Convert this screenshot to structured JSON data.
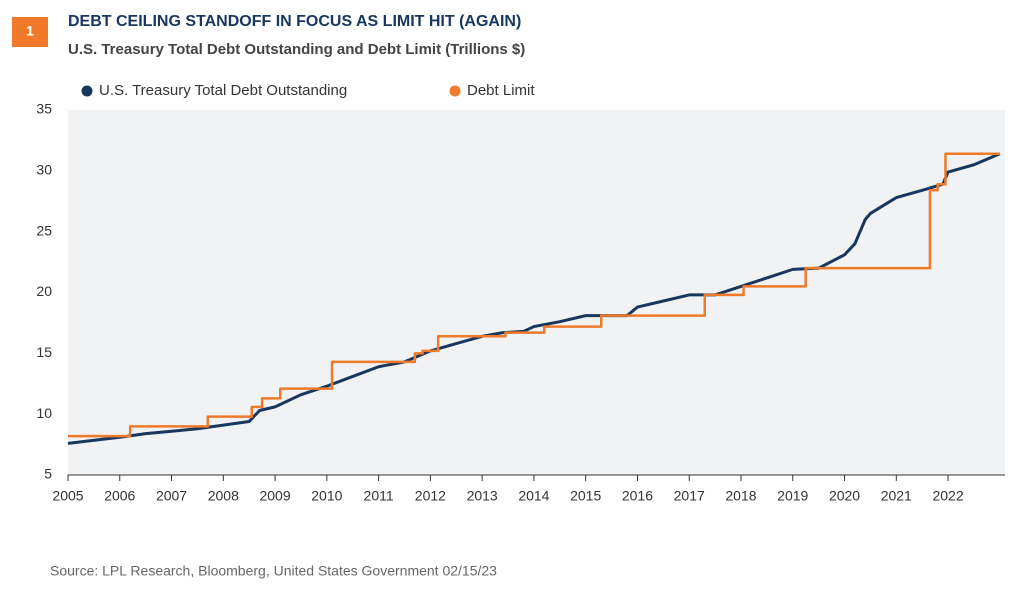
{
  "badge": "1",
  "source": "Source: LPL Research,  Bloomberg, United States Government  02/15/23",
  "chart_data": {
    "type": "line",
    "title": "DEBT CEILING STANDOFF IN FOCUS AS LIMIT HIT (AGAIN)",
    "subtitle": "U.S. Treasury Total Debt Outstanding and Debt Limit (Trillions $)",
    "xlim": [
      2005,
      2023.1
    ],
    "xticks": [
      2005,
      2006,
      2007,
      2008,
      2009,
      2010,
      2011,
      2012,
      2013,
      2014,
      2015,
      2016,
      2017,
      2018,
      2019,
      2020,
      2021,
      2022
    ],
    "ylim": [
      5,
      35
    ],
    "yticks": [
      5,
      10,
      15,
      20,
      25,
      30,
      35
    ],
    "legend": "top-left",
    "series": [
      {
        "name": "U.S. Treasury Total Debt Outstanding",
        "color": "#17375e",
        "x": [
          2005,
          2006,
          2006.5,
          2007,
          2007.5,
          2008,
          2008.5,
          2008.7,
          2009,
          2009.5,
          2010,
          2010.5,
          2011,
          2011.5,
          2012,
          2012.5,
          2013,
          2013.4,
          2013.8,
          2014,
          2014.5,
          2015,
          2015.8,
          2016,
          2016.5,
          2017,
          2017.5,
          2018,
          2018.5,
          2019,
          2019.5,
          2020,
          2020.2,
          2020.4,
          2020.5,
          2021,
          2021.5,
          2021.9,
          2022,
          2022.5,
          2023
        ],
        "values": [
          7.6,
          8.1,
          8.4,
          8.6,
          8.8,
          9.1,
          9.4,
          10.3,
          10.6,
          11.6,
          12.3,
          13.1,
          13.9,
          14.3,
          15.2,
          15.8,
          16.4,
          16.7,
          16.8,
          17.2,
          17.6,
          18.1,
          18.1,
          18.8,
          19.3,
          19.8,
          19.8,
          20.5,
          21.2,
          21.9,
          22.0,
          23.1,
          24.0,
          26.0,
          26.5,
          27.8,
          28.4,
          28.9,
          29.9,
          30.5,
          31.4
        ]
      },
      {
        "name": "Debt Limit",
        "color": "#f07a2a",
        "x": [
          2005,
          2006.2,
          2006.2,
          2007.7,
          2007.7,
          2008.55,
          2008.55,
          2008.75,
          2008.75,
          2009.1,
          2009.1,
          2010.1,
          2010.1,
          2011.7,
          2011.7,
          2011.85,
          2011.85,
          2012.15,
          2012.15,
          2013.45,
          2013.45,
          2014.2,
          2014.2,
          2015.3,
          2015.3,
          2017.3,
          2017.3,
          2018.05,
          2018.05,
          2019.25,
          2019.25,
          2021.65,
          2021.65,
          2021.8,
          2021.8,
          2021.95,
          2021.95,
          2023
        ],
        "values": [
          8.2,
          8.2,
          9.0,
          9.0,
          9.8,
          9.8,
          10.6,
          10.6,
          11.3,
          11.3,
          12.1,
          12.1,
          14.3,
          14.3,
          15.0,
          15.0,
          15.2,
          15.2,
          16.4,
          16.4,
          16.7,
          16.7,
          17.2,
          17.2,
          18.1,
          18.1,
          19.8,
          19.8,
          20.5,
          20.5,
          22.0,
          22.0,
          28.4,
          28.4,
          28.9,
          28.9,
          31.4,
          31.4
        ]
      }
    ]
  }
}
